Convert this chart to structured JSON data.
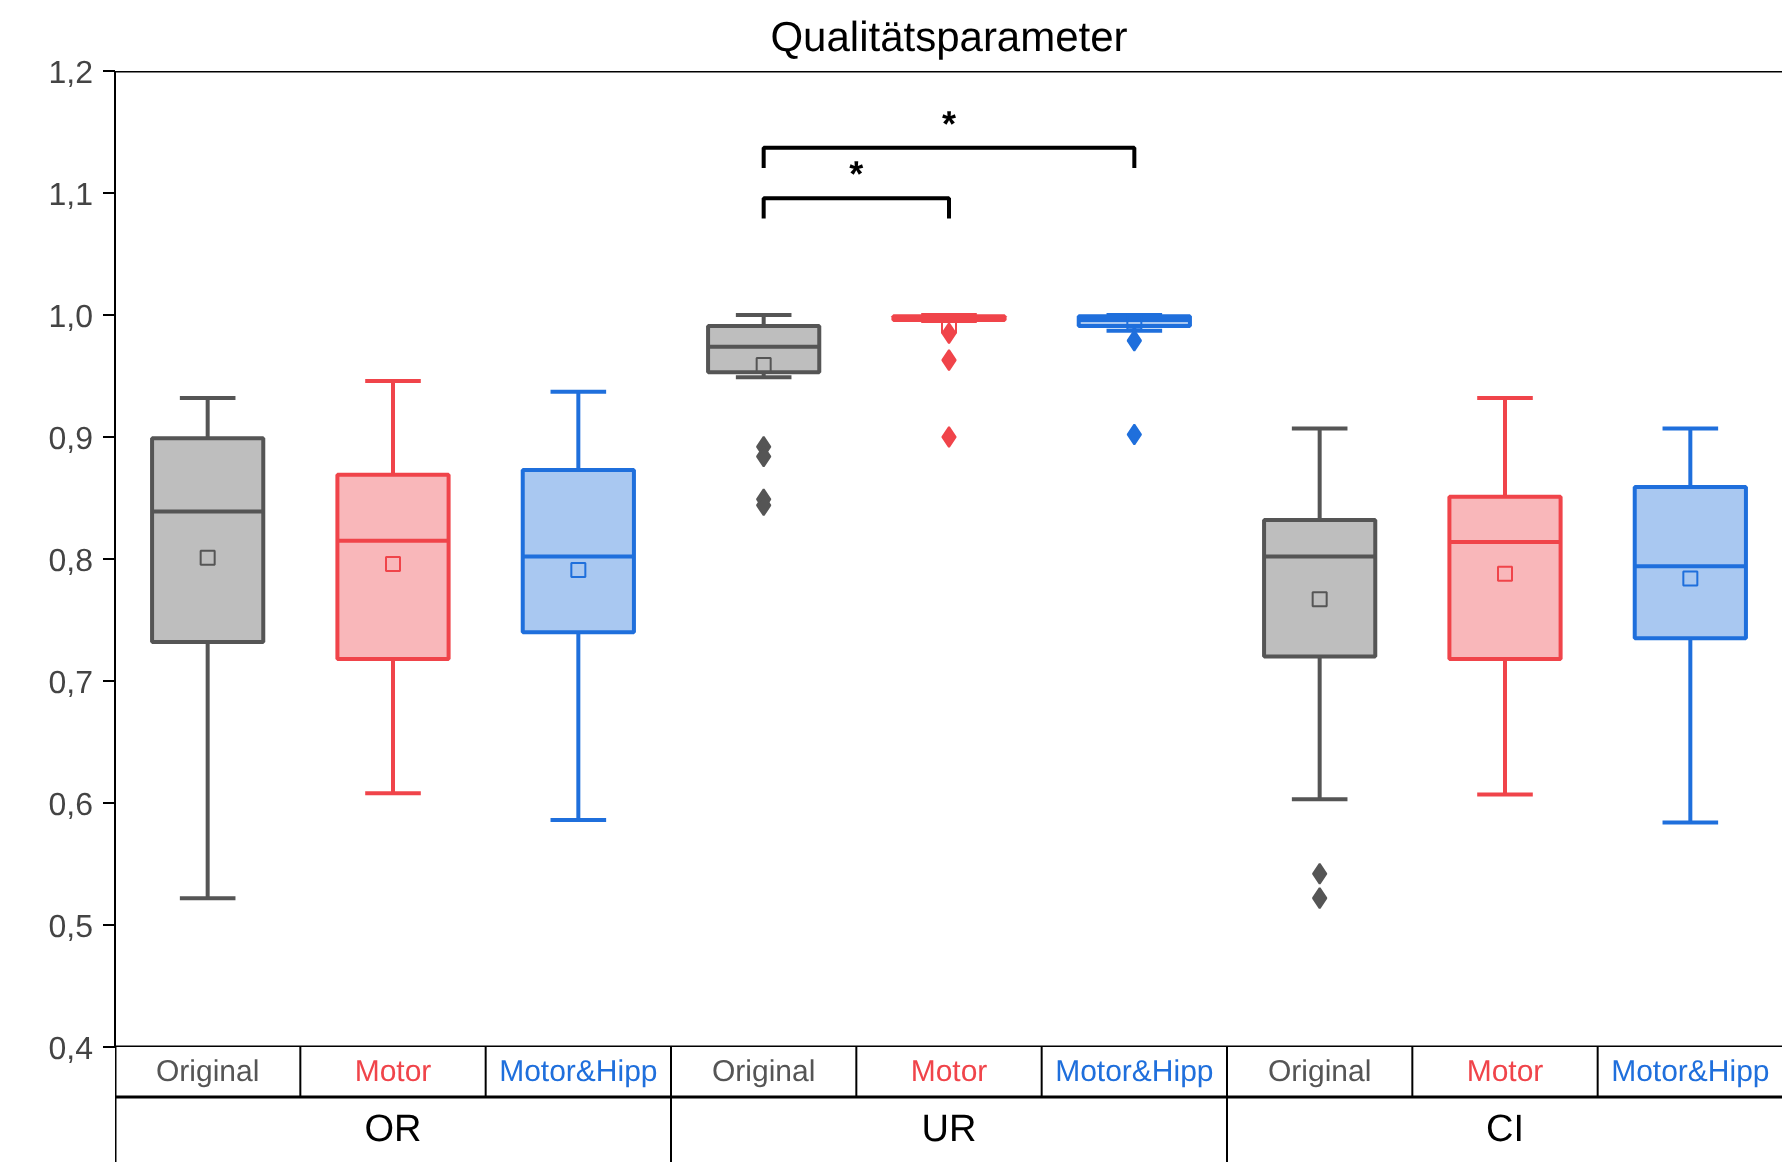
{
  "chart_data": {
    "type": "box",
    "title": "Qualitätsparameter",
    "categories": [
      "OR",
      "UR",
      "CI"
    ],
    "series": [
      {
        "name": "Original",
        "color": "#555555",
        "boxes": [
          {
            "low": 0.522,
            "q1": 0.732,
            "median": 0.839,
            "q3": 0.899,
            "high": 0.932,
            "mean": 0.801
          },
          {
            "low": 0.949,
            "q1": 0.953,
            "median": 0.974,
            "q3": 0.991,
            "high": 1.0,
            "mean": 0.959,
            "outliers": [
              0.892,
              0.884,
              0.849,
              0.844
            ]
          },
          {
            "low": 0.603,
            "q1": 0.72,
            "median": 0.802,
            "q3": 0.832,
            "high": 0.907,
            "mean": 0.767,
            "outliers": [
              0.542,
              0.522
            ]
          }
        ]
      },
      {
        "name": "Motor",
        "color": "#f0444a",
        "boxes": [
          {
            "low": 0.608,
            "q1": 0.718,
            "median": 0.815,
            "q3": 0.869,
            "high": 0.946,
            "mean": 0.796
          },
          {
            "low": 0.995,
            "q1": 0.996,
            "median": 0.998,
            "q3": 0.999,
            "high": 1.0,
            "mean": 0.991,
            "outliers": [
              0.985,
              0.963,
              0.9
            ]
          },
          {
            "low": 0.607,
            "q1": 0.718,
            "median": 0.814,
            "q3": 0.851,
            "high": 0.932,
            "mean": 0.788
          }
        ]
      },
      {
        "name": "Motor&Hipp",
        "color": "#1f6fdc",
        "boxes": [
          {
            "low": 0.586,
            "q1": 0.74,
            "median": 0.802,
            "q3": 0.873,
            "high": 0.937,
            "mean": 0.791
          },
          {
            "low": 0.987,
            "q1": 0.991,
            "median": 0.996,
            "q3": 0.999,
            "high": 1.0,
            "mean": 0.994,
            "outliers": [
              0.979,
              0.902
            ]
          },
          {
            "low": 0.584,
            "q1": 0.735,
            "median": 0.794,
            "q3": 0.859,
            "high": 0.907,
            "mean": 0.784
          }
        ]
      }
    ],
    "ylim": [
      0.4,
      1.2
    ],
    "yticks": [
      {
        "value": 0.4,
        "label": "0,4"
      },
      {
        "value": 0.5,
        "label": "0,5"
      },
      {
        "value": 0.6,
        "label": "0,6"
      },
      {
        "value": 0.7,
        "label": "0,7"
      },
      {
        "value": 0.8,
        "label": "0,8"
      },
      {
        "value": 0.9,
        "label": "0,9"
      },
      {
        "value": 1.0,
        "label": "1,0"
      },
      {
        "value": 1.1,
        "label": "1,1"
      },
      {
        "value": 1.2,
        "label": "1,2"
      }
    ],
    "annotations": [
      "*",
      "*"
    ],
    "grid": false,
    "marker": "diamond"
  }
}
